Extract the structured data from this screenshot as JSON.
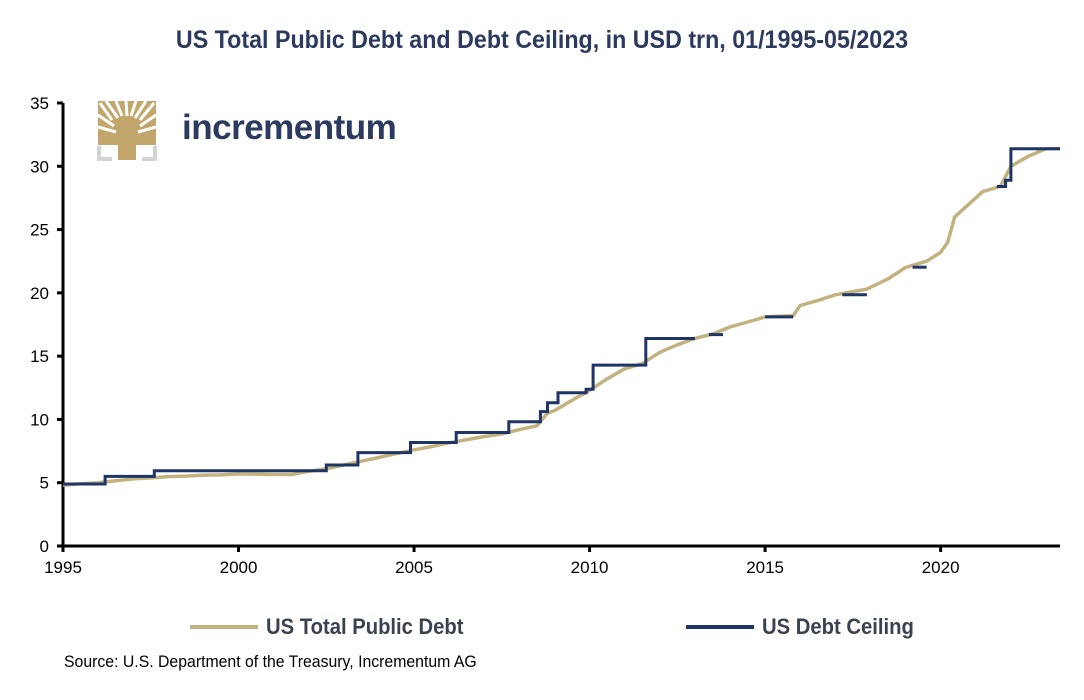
{
  "chart_data": {
    "type": "line",
    "title": "US Total Public Debt and Debt Ceiling, in USD trn, 01/1995-05/2023",
    "xlabel": "",
    "ylabel": "",
    "xlim": [
      1995,
      2023.4
    ],
    "ylim": [
      0,
      35
    ],
    "x_ticks": [
      1995,
      2000,
      2005,
      2010,
      2015,
      2020
    ],
    "x_tick_labels": [
      "1995",
      "2000",
      "2005",
      "2010",
      "2015",
      "2020"
    ],
    "y_ticks": [
      0,
      5,
      10,
      15,
      20,
      25,
      30,
      35
    ],
    "y_tick_labels": [
      "0",
      "5",
      "10",
      "15",
      "20",
      "25",
      "30",
      "35"
    ],
    "grid": false,
    "legend_position": "bottom",
    "series": [
      {
        "name": "US Total Public Debt",
        "color": "#c2b280",
        "style": "line",
        "points": [
          [
            1995.0,
            4.8
          ],
          [
            1995.5,
            4.92
          ],
          [
            1996.0,
            5.0
          ],
          [
            1996.5,
            5.15
          ],
          [
            1997.0,
            5.3
          ],
          [
            1997.5,
            5.38
          ],
          [
            1998.0,
            5.48
          ],
          [
            1998.5,
            5.52
          ],
          [
            1999.0,
            5.6
          ],
          [
            1999.5,
            5.62
          ],
          [
            2000.0,
            5.7
          ],
          [
            2000.5,
            5.68
          ],
          [
            2001.0,
            5.65
          ],
          [
            2001.5,
            5.65
          ],
          [
            2002.0,
            5.9
          ],
          [
            2002.5,
            6.1
          ],
          [
            2003.0,
            6.4
          ],
          [
            2003.5,
            6.7
          ],
          [
            2004.0,
            7.0
          ],
          [
            2004.5,
            7.3
          ],
          [
            2005.0,
            7.6
          ],
          [
            2005.5,
            7.85
          ],
          [
            2006.0,
            8.15
          ],
          [
            2006.5,
            8.4
          ],
          [
            2007.0,
            8.65
          ],
          [
            2007.5,
            8.85
          ],
          [
            2008.0,
            9.2
          ],
          [
            2008.5,
            9.5
          ],
          [
            2008.8,
            10.5
          ],
          [
            2009.0,
            10.7
          ],
          [
            2009.5,
            11.5
          ],
          [
            2010.0,
            12.3
          ],
          [
            2010.5,
            13.2
          ],
          [
            2011.0,
            14.0
          ],
          [
            2011.5,
            14.4
          ],
          [
            2012.0,
            15.3
          ],
          [
            2012.5,
            15.9
          ],
          [
            2013.0,
            16.4
          ],
          [
            2013.5,
            16.75
          ],
          [
            2014.0,
            17.3
          ],
          [
            2014.5,
            17.7
          ],
          [
            2015.0,
            18.1
          ],
          [
            2015.8,
            18.2
          ],
          [
            2016.0,
            19.0
          ],
          [
            2016.5,
            19.4
          ],
          [
            2017.0,
            19.85
          ],
          [
            2017.9,
            20.3
          ],
          [
            2018.5,
            21.1
          ],
          [
            2019.0,
            22.0
          ],
          [
            2019.6,
            22.5
          ],
          [
            2020.0,
            23.2
          ],
          [
            2020.2,
            24.0
          ],
          [
            2020.4,
            26.0
          ],
          [
            2020.8,
            27.0
          ],
          [
            2021.2,
            28.0
          ],
          [
            2021.7,
            28.4
          ],
          [
            2022.0,
            30.0
          ],
          [
            2022.5,
            30.8
          ],
          [
            2023.0,
            31.38
          ],
          [
            2023.4,
            31.4
          ]
        ]
      },
      {
        "name": "US Debt Ceiling",
        "color": "#1f3566",
        "style": "step",
        "segments": [
          [
            [
              1995.0,
              4.9
            ],
            [
              1996.2,
              4.9
            ],
            [
              1996.2,
              5.5
            ],
            [
              1997.6,
              5.5
            ],
            [
              1997.6,
              5.95
            ],
            [
              2002.5,
              5.95
            ],
            [
              2002.5,
              6.4
            ],
            [
              2003.4,
              6.4
            ],
            [
              2003.4,
              7.38
            ],
            [
              2004.9,
              7.38
            ],
            [
              2004.9,
              8.18
            ],
            [
              2006.2,
              8.18
            ],
            [
              2006.2,
              8.97
            ],
            [
              2007.7,
              8.97
            ],
            [
              2007.7,
              9.82
            ],
            [
              2008.6,
              9.82
            ],
            [
              2008.6,
              10.62
            ],
            [
              2008.8,
              10.62
            ],
            [
              2008.8,
              11.32
            ],
            [
              2009.1,
              11.32
            ],
            [
              2009.1,
              12.1
            ],
            [
              2009.9,
              12.1
            ],
            [
              2009.9,
              12.39
            ],
            [
              2010.1,
              12.39
            ],
            [
              2010.1,
              14.29
            ],
            [
              2011.6,
              14.29
            ],
            [
              2011.6,
              16.39
            ],
            [
              2013.0,
              16.39
            ]
          ],
          [
            [
              2013.4,
              16.7
            ],
            [
              2013.8,
              16.7
            ]
          ],
          [
            [
              2015.0,
              18.1
            ],
            [
              2015.8,
              18.1
            ]
          ],
          [
            [
              2017.2,
              19.85
            ],
            [
              2017.9,
              19.85
            ]
          ],
          [
            [
              2019.2,
              22.03
            ],
            [
              2019.6,
              22.03
            ]
          ],
          [
            [
              2021.6,
              28.4
            ],
            [
              2021.85,
              28.4
            ],
            [
              2021.85,
              28.9
            ],
            [
              2022.0,
              28.9
            ],
            [
              2022.0,
              31.38
            ],
            [
              2023.4,
              31.38
            ]
          ]
        ]
      }
    ]
  },
  "logo": {
    "text": "incrementum"
  },
  "legend": [
    {
      "label": "US Total Public Debt",
      "color": "#c2b280"
    },
    {
      "label": "US Debt Ceiling",
      "color": "#1f3566"
    }
  ],
  "source": "Source: U.S. Department of the Treasury, Incrementum AG"
}
